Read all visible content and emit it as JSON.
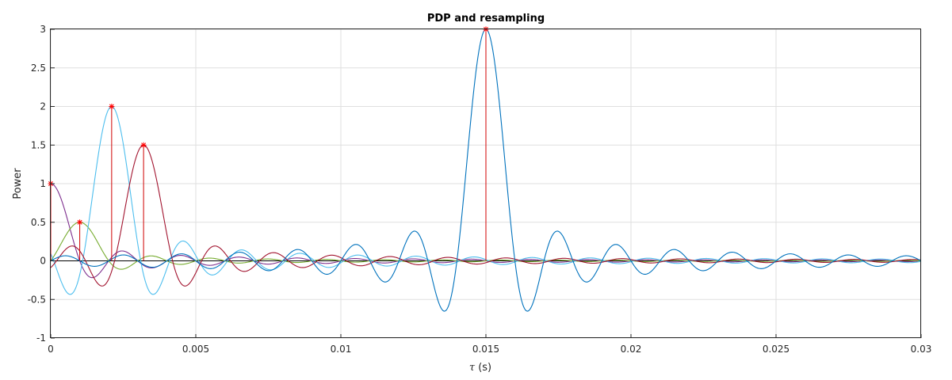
{
  "chart_data": {
    "type": "line",
    "title": "PDP and resampling",
    "xlabel_symbol": "τ",
    "xlabel_unit": " (s)",
    "ylabel": "Power",
    "xlim": [
      0,
      0.03
    ],
    "ylim": [
      -1,
      3
    ],
    "grid": true,
    "x_ticks": [
      {
        "value": 0,
        "label": "0"
      },
      {
        "value": 0.005,
        "label": "0.005"
      },
      {
        "value": 0.01,
        "label": "0.01"
      },
      {
        "value": 0.015,
        "label": "0.015"
      },
      {
        "value": 0.02,
        "label": "0.02"
      },
      {
        "value": 0.025,
        "label": "0.025"
      },
      {
        "value": 0.03,
        "label": "0.03"
      }
    ],
    "y_ticks": [
      {
        "value": -1,
        "label": "-1"
      },
      {
        "value": -0.5,
        "label": "-0.5"
      },
      {
        "value": 0,
        "label": "0"
      },
      {
        "value": 0.5,
        "label": "0.5"
      },
      {
        "value": 1,
        "label": "1"
      },
      {
        "value": 1.5,
        "label": "1.5"
      },
      {
        "value": 2,
        "label": "2"
      },
      {
        "value": 2.5,
        "label": "2.5"
      },
      {
        "value": 3,
        "label": "3"
      }
    ],
    "main_lobe_halfwidth": 0.001,
    "taps": [
      {
        "delay": 0.0,
        "power": 1.0
      },
      {
        "delay": 0.001,
        "power": 0.5
      },
      {
        "delay": 0.0021,
        "power": 2.0
      },
      {
        "delay": 0.0032,
        "power": 1.5
      },
      {
        "delay": 0.015,
        "power": 3.0
      }
    ],
    "series": [
      {
        "delay": 0.0,
        "amplitude": 1.0,
        "color": "#7e2f8e"
      },
      {
        "delay": 0.001,
        "amplitude": 0.5,
        "color": "#77ac30"
      },
      {
        "delay": 0.0021,
        "amplitude": 2.0,
        "color": "#4dbeee"
      },
      {
        "delay": 0.0032,
        "amplitude": 1.5,
        "color": "#a2142f"
      },
      {
        "delay": 0.015,
        "amplitude": 3.0,
        "color": "#0072bd"
      }
    ],
    "stem_color": "#d00000",
    "marker_color": "#ff0000",
    "zero_line_color": "#000000"
  }
}
